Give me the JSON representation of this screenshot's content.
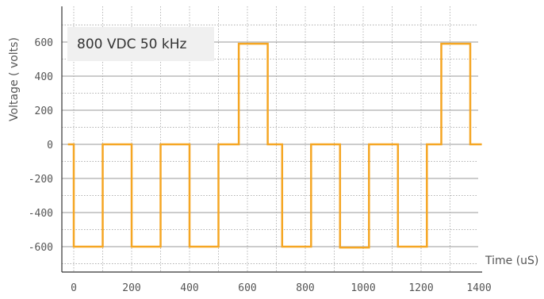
{
  "chart_data": {
    "type": "line",
    "title": "",
    "xlabel": "Time (uS)",
    "ylabel": "Voltage ( volts)",
    "annotation": "800 VDC 50 kHz",
    "xlim": [
      -30,
      1450
    ],
    "ylim": [
      -700,
      750
    ],
    "xticks": [
      0,
      200,
      400,
      600,
      800,
      1000,
      1200,
      1400
    ],
    "yticks": [
      600,
      400,
      200,
      0,
      -200,
      -400,
      -600
    ],
    "grid": true,
    "colors": {
      "series": "#F5A623",
      "grid": "#999999",
      "axis": "#333333"
    },
    "series": [
      {
        "x": [
          -20,
          0,
          0,
          100,
          100,
          200,
          200,
          300,
          300,
          400,
          400,
          500,
          500,
          570,
          570,
          670,
          670,
          720,
          720,
          820,
          820,
          920,
          920,
          1020,
          1020,
          1120,
          1120,
          1220,
          1220,
          1270,
          1270,
          1370,
          1370,
          1410
        ],
        "y": [
          0,
          0,
          -600,
          -600,
          0,
          0,
          -600,
          -600,
          0,
          0,
          -600,
          -600,
          0,
          0,
          590,
          590,
          0,
          0,
          -600,
          -600,
          0,
          0,
          -605,
          -605,
          0,
          0,
          -600,
          -600,
          0,
          0,
          590,
          590,
          0,
          0
        ]
      }
    ]
  }
}
